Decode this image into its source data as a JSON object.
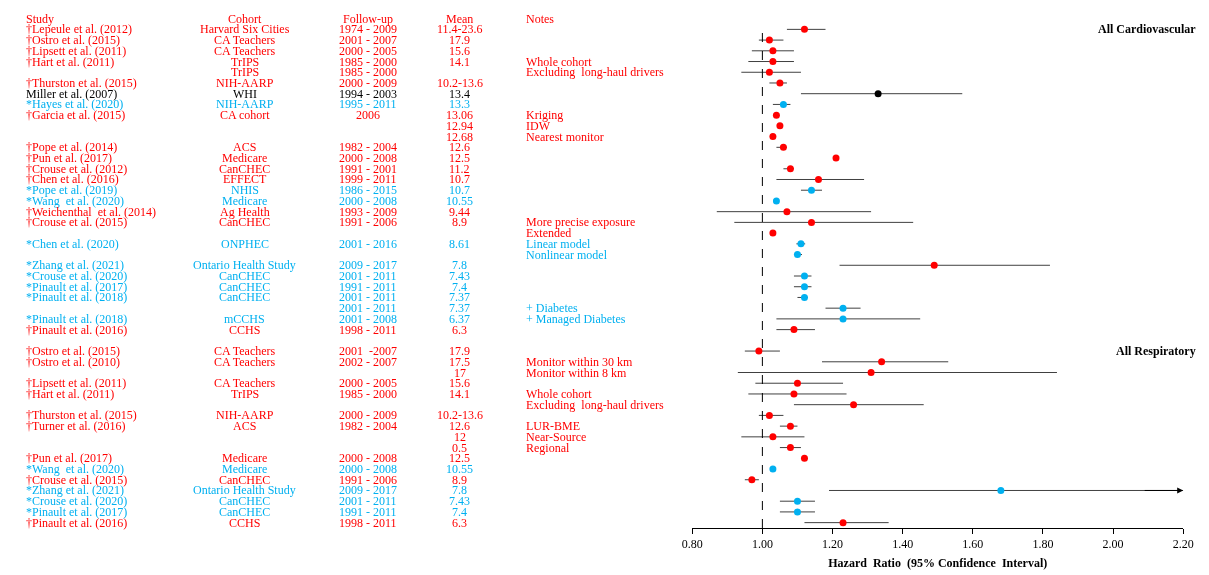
{
  "chart_data": [
    {
      "type": "scatter",
      "orientation": "horizontal",
      "marker": "circle",
      "tick_labels": "x",
      "xlabel": "Hazard  Ratio  (95% Confidence  Interval)",
      "annotations": [
        "All Cardiovascular",
        "All Respiratory"
      ],
      "categories": [
        null,
        null,
        null,
        null,
        null,
        null,
        null,
        null,
        null,
        null,
        null,
        null,
        null,
        null,
        null,
        null,
        null,
        null,
        null,
        null,
        null,
        null,
        null,
        null,
        null,
        null,
        null,
        null,
        null,
        null,
        null,
        null,
        null,
        null,
        null,
        null,
        null,
        null,
        null,
        null,
        null,
        null,
        null,
        null,
        null,
        null,
        null
      ],
      "values": [
        1.12,
        1.02,
        1.03,
        1.03,
        1.02,
        1.05,
        1.33,
        1.06,
        1.04,
        1.05,
        1.03,
        1.06,
        1.21,
        1.08,
        1.16,
        1.14,
        1.04,
        1.07,
        1.14,
        1.03,
        1.11,
        1.1,
        1.49,
        1.12,
        1.12,
        1.12,
        1.23,
        1.23,
        1.09,
        null,
        0.99,
        1.34,
        1.31,
        1.1,
        1.09,
        1.26,
        1.02,
        1.08,
        1.03,
        1.08,
        1.12,
        1.03,
        0.97,
        1.68,
        1.1,
        1.1,
        1.23
      ],
      "errors": [
        [
          1.07,
          1.18
        ],
        [
          0.99,
          1.06
        ],
        [
          0.97,
          1.09
        ],
        [
          0.96,
          1.09
        ],
        [
          0.94,
          1.11
        ],
        [
          1.02,
          1.07
        ],
        [
          1.11,
          1.57
        ],
        [
          1.03,
          1.08
        ],
        null,
        null,
        null,
        [
          1.04,
          1.07
        ],
        null,
        [
          1.06,
          1.09
        ],
        [
          1.04,
          1.29
        ],
        [
          1.11,
          1.17
        ],
        null,
        [
          0.87,
          1.31
        ],
        [
          0.92,
          1.43
        ],
        null,
        [
          1.097,
          1.122
        ],
        [
          1.09,
          1.113
        ],
        [
          1.22,
          1.82
        ],
        [
          1.09,
          1.14
        ],
        [
          1.09,
          1.14
        ],
        [
          1.1,
          1.13
        ],
        [
          1.18,
          1.28
        ],
        [
          1.04,
          1.45
        ],
        [
          1.04,
          1.15
        ],
        null,
        [
          0.95,
          1.05
        ],
        [
          1.17,
          1.53
        ],
        [
          0.93,
          1.84
        ],
        [
          0.98,
          1.23
        ],
        [
          0.96,
          1.24
        ],
        [
          1.09,
          1.46
        ],
        [
          0.99,
          1.06
        ],
        [
          1.05,
          1.1
        ],
        [
          0.94,
          1.12
        ],
        [
          1.05,
          1.11
        ],
        null,
        null,
        [
          0.95,
          0.99
        ],
        [
          1.19,
          2.2
        ],
        [
          1.05,
          1.15
        ],
        [
          1.05,
          1.15
        ],
        [
          1.12,
          1.36
        ]
      ],
      "colors": [
        "#ff0000",
        "#ff0000",
        "#ff0000",
        "#ff0000",
        "#ff0000",
        "#ff0000",
        "#000000",
        "#00b0f0",
        "#ff0000",
        "#ff0000",
        "#ff0000",
        "#ff0000",
        "#ff0000",
        "#ff0000",
        "#ff0000",
        "#00b0f0",
        "#00b0f0",
        "#ff0000",
        "#ff0000",
        "#ff0000",
        "#00b0f0",
        "#00b0f0",
        "#ff0000",
        "#00b0f0",
        "#00b0f0",
        "#00b0f0",
        "#00b0f0",
        "#00b0f0",
        "#ff0000",
        null,
        "#ff0000",
        "#ff0000",
        "#ff0000",
        "#ff0000",
        "#ff0000",
        "#ff0000",
        "#ff0000",
        "#ff0000",
        "#ff0000",
        "#ff0000",
        "#ff0000",
        "#00b0f0",
        "#ff0000",
        "#00b0f0",
        "#00b0f0",
        "#00b0f0",
        "#ff0000"
      ],
      "xlim": [
        0.8,
        2.2
      ],
      "xticks": [
        {
          "value": 0.8,
          "label": "0.80"
        },
        {
          "value": 1.0,
          "label": "1.00"
        },
        {
          "value": 1.2,
          "label": "1.20"
        },
        {
          "value": 1.4,
          "label": "1.40"
        },
        {
          "value": 1.6,
          "label": "1.60"
        },
        {
          "value": 1.8,
          "label": "1.80"
        },
        {
          "value": 2.0,
          "label": "2.00"
        },
        {
          "value": 2.2,
          "label": "2.20"
        }
      ],
      "ref_lines": [
        {
          "axis": "x",
          "value": 1.0,
          "color": "#000000",
          "line_style": "dashed"
        }
      ]
    },
    {
      "type": "other",
      "title": "Study",
      "categories": [
        "†Lepeule et al. (2012)",
        "†Ostro et al. (2015)",
        "†Lipsett et al. (2011)",
        "†Hart et al. (2011)",
        null,
        "†Thurston et al. (2015)",
        "Miller et al. (2007)",
        "*Hayes et al. (2020)",
        "†Garcia et al. (2015)",
        null,
        null,
        "†Pope et al. (2014)",
        "†Pun et al. (2017)",
        "†Crouse et al. (2012)",
        "†Chen et al. (2016)",
        "*Pope et al. (2019)",
        "*Wang  et al. (2020)",
        "†Weichenthal  et al. (2014)",
        "†Crouse et al. (2015)",
        null,
        "*Chen et al. (2020)",
        null,
        "*Zhang et al. (2021)",
        "*Crouse et al. (2020)",
        "*Pinault et al. (2017)",
        "*Pinault et al. (2018)",
        null,
        "*Pinault et al. (2018)",
        "†Pinault et al. (2016)",
        null,
        "†Ostro et al. (2015)",
        "†Ostro et al. (2010)",
        null,
        "†Lipsett et al. (2011)",
        "†Hart et al. (2011)",
        null,
        "†Thurston et al. (2015)",
        "†Turner et al. (2016)",
        null,
        null,
        "†Pun et al. (2017)",
        "*Wang  et al. (2020)",
        "†Crouse et al. (2015)",
        "*Zhang et al. (2021)",
        "*Crouse et al. (2020)",
        "*Pinault et al. (2017)",
        "†Pinault et al. (2016)"
      ],
      "colors": [
        "#ff0000",
        "#ff0000",
        "#ff0000",
        "#ff0000",
        null,
        "#ff0000",
        "#000000",
        "#00b0f0",
        "#ff0000",
        null,
        null,
        "#ff0000",
        "#ff0000",
        "#ff0000",
        "#ff0000",
        "#00b0f0",
        "#00b0f0",
        "#ff0000",
        "#ff0000",
        null,
        "#00b0f0",
        null,
        "#00b0f0",
        "#00b0f0",
        "#00b0f0",
        "#00b0f0",
        null,
        "#00b0f0",
        "#ff0000",
        null,
        "#ff0000",
        "#ff0000",
        null,
        "#ff0000",
        "#ff0000",
        null,
        "#ff0000",
        "#ff0000",
        null,
        null,
        "#ff0000",
        "#00b0f0",
        "#ff0000",
        "#00b0f0",
        "#00b0f0",
        "#00b0f0",
        "#ff0000"
      ]
    },
    {
      "type": "other",
      "title": "Cohort",
      "categories": [
        "Harvard Six Cities",
        "CA Teachers",
        "CA Teachers",
        "TrIPS",
        "TrIPS",
        "NIH-AARP",
        "WHI",
        "NIH-AARP",
        "CA cohort",
        null,
        null,
        "ACS",
        "Medicare",
        "CanCHEC",
        "EFFECT",
        "NHIS",
        "Medicare",
        "Ag Health",
        "CanCHEC",
        null,
        "ONPHEC",
        null,
        "Ontario Health Study",
        "CanCHEC",
        "CanCHEC",
        "CanCHEC",
        null,
        "mCCHS",
        "CCHS",
        null,
        "CA Teachers",
        "CA Teachers",
        null,
        "CA Teachers",
        "TrIPS",
        null,
        "NIH-AARP",
        "ACS",
        null,
        null,
        "Medicare",
        "Medicare",
        "CanCHEC",
        "Ontario Health Study",
        "CanCHEC",
        "CanCHEC",
        "CCHS"
      ],
      "colors": [
        "#ff0000",
        "#ff0000",
        "#ff0000",
        "#ff0000",
        "#ff0000",
        "#ff0000",
        "#000000",
        "#00b0f0",
        "#ff0000",
        null,
        null,
        "#ff0000",
        "#ff0000",
        "#ff0000",
        "#ff0000",
        "#00b0f0",
        "#00b0f0",
        "#ff0000",
        "#ff0000",
        null,
        "#00b0f0",
        null,
        "#00b0f0",
        "#00b0f0",
        "#00b0f0",
        "#00b0f0",
        null,
        "#00b0f0",
        "#ff0000",
        null,
        "#ff0000",
        "#ff0000",
        null,
        "#ff0000",
        "#ff0000",
        null,
        "#ff0000",
        "#ff0000",
        null,
        null,
        "#ff0000",
        "#00b0f0",
        "#ff0000",
        "#00b0f0",
        "#00b0f0",
        "#00b0f0",
        "#ff0000"
      ]
    },
    {
      "type": "other",
      "title": "Follow-up",
      "categories": [
        "1974 - 2009",
        "2001 - 2007",
        "2000 - 2005",
        "1985 - 2000",
        "1985 - 2000",
        "2000 - 2009",
        "1994 - 2003",
        "1995 - 2011",
        "2006",
        null,
        null,
        "1982 - 2004",
        "2000 - 2008",
        "1991 - 2001",
        "1999 - 2011",
        "1986 - 2015",
        "2000 - 2008",
        "1993 - 2009",
        "1991 - 2006",
        null,
        "2001 - 2016",
        null,
        "2009 - 2017",
        "2001 - 2011",
        "1991 - 2011",
        "2001 - 2011",
        "2001 - 2011",
        "2001 - 2008",
        "1998 - 2011",
        null,
        "2001  -2007",
        "2002 - 2007",
        null,
        "2000 - 2005",
        "1985 - 2000",
        null,
        "2000 - 2009",
        "1982 - 2004",
        null,
        null,
        "2000 - 2008",
        "2000 - 2008",
        "1991 - 2006",
        "2009 - 2017",
        "2001 - 2011",
        "1991 - 2011",
        "1998 - 2011"
      ],
      "colors": [
        "#ff0000",
        "#ff0000",
        "#ff0000",
        "#ff0000",
        "#ff0000",
        "#ff0000",
        "#000000",
        "#00b0f0",
        "#ff0000",
        null,
        null,
        "#ff0000",
        "#ff0000",
        "#ff0000",
        "#ff0000",
        "#00b0f0",
        "#00b0f0",
        "#ff0000",
        "#ff0000",
        null,
        "#00b0f0",
        null,
        "#00b0f0",
        "#00b0f0",
        "#00b0f0",
        "#00b0f0",
        "#00b0f0",
        "#00b0f0",
        "#ff0000",
        null,
        "#ff0000",
        "#ff0000",
        null,
        "#ff0000",
        "#ff0000",
        null,
        "#ff0000",
        "#ff0000",
        null,
        null,
        "#ff0000",
        "#00b0f0",
        "#ff0000",
        "#00b0f0",
        "#00b0f0",
        "#00b0f0",
        "#ff0000"
      ]
    },
    {
      "type": "other",
      "title": "Mean",
      "categories": [
        "11.4-23.6",
        "17.9",
        "15.6",
        "14.1",
        null,
        "10.2-13.6",
        "13.4",
        "13.3",
        "13.06",
        "12.94",
        "12.68",
        "12.6",
        "12.5",
        "11.2",
        "10.7",
        "10.7",
        "10.55",
        "9.44",
        "8.9",
        null,
        "8.61",
        null,
        "7.8",
        "7.43",
        "7.4",
        "7.37",
        "7.37",
        "6.37",
        "6.3",
        null,
        "17.9",
        "17.5",
        "17",
        "15.6",
        "14.1",
        null,
        "10.2-13.6",
        "12.6",
        "12",
        "0.5",
        "12.5",
        "10.55",
        "8.9",
        "7.8",
        "7.43",
        "7.4",
        "6.3"
      ],
      "colors": [
        "#ff0000",
        "#ff0000",
        "#ff0000",
        "#ff0000",
        null,
        "#ff0000",
        "#000000",
        "#00b0f0",
        "#ff0000",
        "#ff0000",
        "#ff0000",
        "#ff0000",
        "#ff0000",
        "#ff0000",
        "#ff0000",
        "#00b0f0",
        "#00b0f0",
        "#ff0000",
        "#ff0000",
        null,
        "#00b0f0",
        null,
        "#00b0f0",
        "#00b0f0",
        "#00b0f0",
        "#00b0f0",
        "#00b0f0",
        "#00b0f0",
        "#ff0000",
        null,
        "#ff0000",
        "#ff0000",
        "#ff0000",
        "#ff0000",
        "#ff0000",
        null,
        "#ff0000",
        "#ff0000",
        "#ff0000",
        "#ff0000",
        "#ff0000",
        "#00b0f0",
        "#ff0000",
        "#00b0f0",
        "#00b0f0",
        "#00b0f0",
        "#ff0000"
      ]
    },
    {
      "type": "other",
      "title": "Notes",
      "categories": [
        null,
        null,
        null,
        "Whole cohort",
        "Excluding  long-haul drivers",
        null,
        null,
        null,
        "Kriging",
        "IDW",
        "Nearest monitor",
        null,
        null,
        null,
        null,
        null,
        null,
        null,
        "More precise exposure",
        "Extended",
        "Linear model",
        "Nonlinear model",
        null,
        null,
        null,
        null,
        "+ Diabetes",
        "+ Managed Diabetes",
        null,
        null,
        null,
        "Monitor within 30 km",
        "Monitor within 8 km",
        null,
        "Whole cohort",
        "Excluding  long-haul drivers",
        null,
        "LUR-BME",
        "Near-Source",
        "Regional",
        null,
        null,
        null,
        null,
        null,
        null,
        null
      ],
      "colors": [
        null,
        null,
        null,
        "#ff0000",
        "#ff0000",
        null,
        null,
        null,
        "#ff0000",
        "#ff0000",
        "#ff0000",
        null,
        null,
        null,
        null,
        null,
        null,
        null,
        "#ff0000",
        "#ff0000",
        "#00b0f0",
        "#00b0f0",
        null,
        null,
        null,
        null,
        "#00b0f0",
        "#00b0f0",
        null,
        null,
        null,
        "#ff0000",
        "#ff0000",
        null,
        "#ff0000",
        "#ff0000",
        null,
        "#ff0000",
        "#ff0000",
        "#ff0000",
        null,
        null,
        null,
        null,
        null,
        null,
        null
      ]
    }
  ]
}
